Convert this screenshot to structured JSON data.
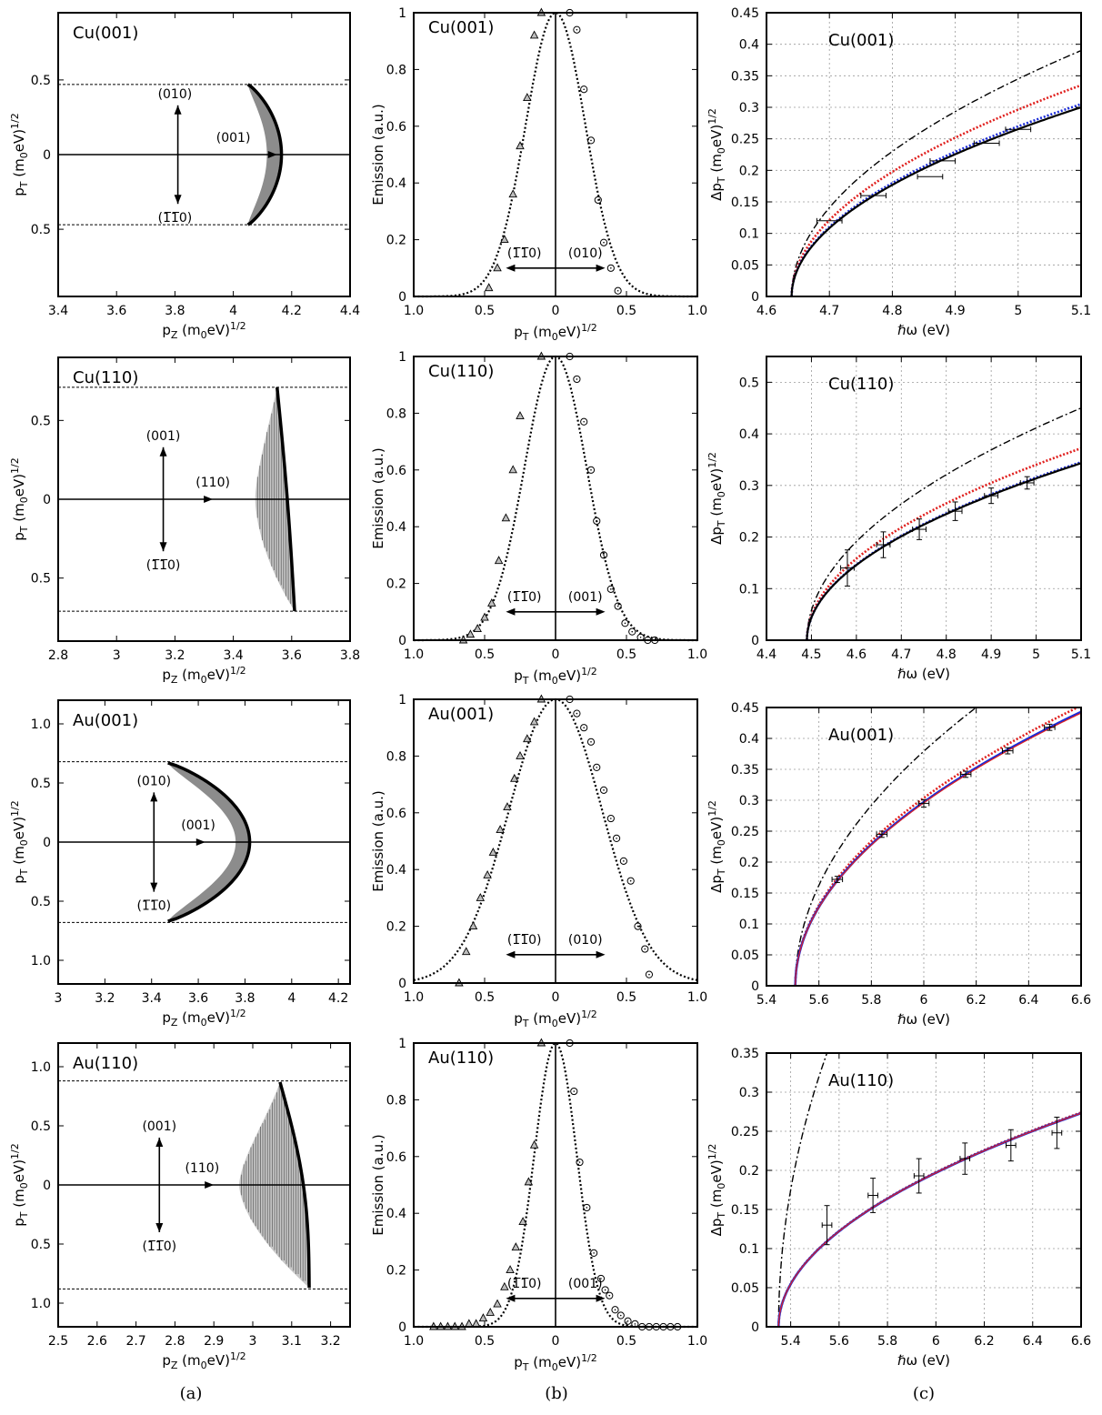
{
  "figure": {
    "captions": [
      "(a)",
      "(b)",
      "(c)"
    ]
  },
  "colors": {
    "red": "#e0201e",
    "blue": "#1a2bd8",
    "shade": "#8c8c8c"
  },
  "chart_data": [
    {
      "id": "a1",
      "type": "area",
      "title": "Cu(001)",
      "xlabel": "p_Z (m_0eV)^{1/2}",
      "ylabel": "p_T (m_0eV)^{1/2}",
      "xlim": [
        3.4,
        4.4
      ],
      "ylim": [
        -0.95,
        0.95
      ],
      "xticks": [
        3.4,
        3.6,
        3.8,
        4.0,
        4.2,
        4.4
      ],
      "xticklabels": [
        "3.4",
        "3.6",
        "3.8",
        "4",
        "4.2",
        "4.4"
      ],
      "yticks": [
        0.5,
        0,
        -0.5
      ],
      "yticklabels": [
        "0.5",
        "0",
        "0.5"
      ],
      "hlines": [
        0.47,
        -0.47
      ],
      "shape": "convex",
      "boundary": {
        "xmin": 4.05,
        "xmax": 4.165,
        "ymax": 0.47
      },
      "fill": "solid",
      "fill_inner_offset": 0.05,
      "arrows": {
        "cx": 3.81,
        "half": 0.33,
        "hx1": 4.15,
        "hlabel": "(001)",
        "up": "(010)",
        "down": "(1̅1̅0)"
      },
      "arrow_label_pos": {
        "up_x": 3.8,
        "down_x": 3.8,
        "h_x": 4.0
      }
    },
    {
      "id": "b1",
      "type": "scatter",
      "title": "Cu(001)",
      "xlabel": "p_T (m_0eV)^{1/2}",
      "ylabel": "Emission (a.u.)",
      "xlim": [
        -1,
        1
      ],
      "ylim": [
        0,
        1
      ],
      "xticks": [
        -1,
        -0.5,
        0,
        0.5,
        1
      ],
      "xticklabels": [
        "1.0",
        "0.5",
        "0",
        "0.5",
        "1.0"
      ],
      "yticks": [
        0,
        0.2,
        0.4,
        0.6,
        0.8,
        1
      ],
      "yticklabels": [
        "0",
        "0.2",
        "0.4",
        "0.6",
        "0.8",
        "1"
      ],
      "gauss_sigma": 0.21,
      "triangles": [
        [
          -0.47,
          0.03
        ],
        [
          -0.41,
          0.1
        ],
        [
          -0.36,
          0.2
        ],
        [
          -0.3,
          0.36
        ],
        [
          -0.25,
          0.53
        ],
        [
          -0.2,
          0.7
        ],
        [
          -0.15,
          0.92
        ],
        [
          -0.1,
          1.0
        ]
      ],
      "circles": [
        [
          0.1,
          1.0
        ],
        [
          0.15,
          0.94
        ],
        [
          0.2,
          0.73
        ],
        [
          0.25,
          0.55
        ],
        [
          0.3,
          0.34
        ],
        [
          0.34,
          0.19
        ],
        [
          0.39,
          0.1
        ],
        [
          0.44,
          0.02
        ]
      ],
      "arrow_labels": [
        "(1̅1̅0)",
        "(010)"
      ]
    },
    {
      "id": "c1",
      "type": "line",
      "title": "Cu(001)",
      "xlabel": "ℏω (eV)",
      "ylabel": "Δp_T (m_0eV)^{1/2}",
      "xlim": [
        4.6,
        5.1
      ],
      "ylim": [
        0,
        0.45
      ],
      "xticks": [
        4.6,
        4.7,
        4.8,
        4.9,
        5.0,
        5.1
      ],
      "xticklabels": [
        "4.6",
        "4.7",
        "4.8",
        "4.9",
        "5",
        "5.1"
      ],
      "yticks": [
        0,
        0.05,
        0.1,
        0.15,
        0.2,
        0.25,
        0.3,
        0.35,
        0.4,
        0.45
      ],
      "yticklabels": [
        "0",
        "0.05",
        "0.1",
        "0.15",
        "0.2",
        "0.25",
        "0.3",
        "0.35",
        "0.4",
        "0.45"
      ],
      "threshold": 4.64,
      "series": [
        {
          "style": "dashdot-black",
          "y_at_xmax": 0.39
        },
        {
          "style": "dotted-red",
          "y_at_xmax": 0.335
        },
        {
          "style": "dotted-blue",
          "y_at_xmax": 0.305
        },
        {
          "style": "solid-black",
          "y_at_xmax": 0.3
        }
      ],
      "points": [
        [
          4.7,
          0.12
        ],
        [
          4.77,
          0.16
        ],
        [
          4.86,
          0.19
        ],
        [
          4.88,
          0.215
        ],
        [
          4.95,
          0.243
        ],
        [
          5.0,
          0.265
        ]
      ],
      "xerr": 0.02,
      "yerr": 0.0
    },
    {
      "id": "a2",
      "type": "area",
      "title": "Cu(110)",
      "xlabel": "p_Z (m_0eV)^{1/2}",
      "ylabel": "p_T (m_0eV)^{1/2}",
      "xlim": [
        2.8,
        3.8
      ],
      "ylim": [
        -0.9,
        0.9
      ],
      "xticks": [
        2.8,
        3.0,
        3.2,
        3.4,
        3.6,
        3.8
      ],
      "xticklabels": [
        "2.8",
        "3",
        "3.2",
        "3.4",
        "3.6",
        "3.8"
      ],
      "yticks": [
        0.5,
        0,
        -0.5
      ],
      "yticklabels": [
        "0.5",
        "0",
        "0.5"
      ],
      "hlines": [
        0.71,
        -0.71
      ],
      "shape": "oblique",
      "boundary": {
        "top_x": 3.55,
        "bottom_x": 3.61,
        "mid_x": 3.585,
        "inner_x": 3.475,
        "ymax": 0.71
      },
      "fill": "hatched",
      "arrows": {
        "cx": 3.16,
        "half": 0.33,
        "hx1": 3.33,
        "hlabel": "(110)",
        "up": "(001)",
        "down": "(1̅1̅0)"
      },
      "arrow_label_pos": {
        "up_x": 3.16,
        "down_x": 3.16,
        "h_x": 3.33
      }
    },
    {
      "id": "b2",
      "type": "scatter",
      "title": "Cu(110)",
      "xlabel": "p_T (m_0eV)^{1/2}",
      "ylabel": "Emission (a.u.)",
      "xlim": [
        -1,
        1
      ],
      "ylim": [
        0,
        1
      ],
      "xticks": [
        -1,
        -0.5,
        0,
        0.5,
        1
      ],
      "xticklabels": [
        "1.0",
        "0.5",
        "0",
        "0.5",
        "1.0"
      ],
      "yticks": [
        0,
        0.2,
        0.4,
        0.6,
        0.8,
        1
      ],
      "yticklabels": [
        "0",
        "0.2",
        "0.4",
        "0.6",
        "0.8",
        "1"
      ],
      "gauss_sigma": 0.22,
      "triangles": [
        [
          -0.65,
          0.0
        ],
        [
          -0.6,
          0.02
        ],
        [
          -0.55,
          0.04
        ],
        [
          -0.5,
          0.08
        ],
        [
          -0.45,
          0.13
        ],
        [
          -0.4,
          0.28
        ],
        [
          -0.35,
          0.43
        ],
        [
          -0.3,
          0.6
        ],
        [
          -0.25,
          0.79
        ],
        [
          -0.1,
          1.0
        ]
      ],
      "circles": [
        [
          0.1,
          1.0
        ],
        [
          0.15,
          0.92
        ],
        [
          0.2,
          0.77
        ],
        [
          0.25,
          0.6
        ],
        [
          0.29,
          0.42
        ],
        [
          0.34,
          0.3
        ],
        [
          0.39,
          0.18
        ],
        [
          0.44,
          0.12
        ],
        [
          0.49,
          0.06
        ],
        [
          0.54,
          0.03
        ],
        [
          0.6,
          0.01
        ],
        [
          0.65,
          0.0
        ],
        [
          0.7,
          0.0
        ]
      ],
      "arrow_labels": [
        "(1̅1̅0)",
        "(001)"
      ]
    },
    {
      "id": "c2",
      "type": "line",
      "title": "Cu(110)",
      "xlabel": "ℏω (eV)",
      "ylabel": "Δp_T (m_0eV)^{1/2}",
      "xlim": [
        4.4,
        5.1
      ],
      "ylim": [
        0,
        0.55
      ],
      "xticks": [
        4.4,
        4.5,
        4.6,
        4.7,
        4.8,
        4.9,
        5.0,
        5.1
      ],
      "xticklabels": [
        "4.4",
        "4.5",
        "4.6",
        "4.7",
        "4.8",
        "4.9",
        "5",
        "5.1"
      ],
      "yticks": [
        0,
        0.1,
        0.2,
        0.3,
        0.4,
        0.5
      ],
      "yticklabels": [
        "0",
        "0.1",
        "0.2",
        "0.3",
        "0.4",
        "0.5"
      ],
      "threshold": 4.49,
      "series": [
        {
          "style": "dashdot-black",
          "y_at_xmax": 0.45
        },
        {
          "style": "dotted-red",
          "y_at_xmax": 0.372
        },
        {
          "style": "dotted-blue",
          "y_at_xmax": 0.345
        },
        {
          "style": "solid-black",
          "y_at_xmax": 0.343
        }
      ],
      "points": [
        [
          4.58,
          0.14
        ],
        [
          4.66,
          0.185
        ],
        [
          4.74,
          0.215
        ],
        [
          4.82,
          0.25
        ],
        [
          4.9,
          0.28
        ],
        [
          4.98,
          0.305
        ]
      ],
      "xerr": 0.015,
      "yerrs": [
        0.035,
        0.025,
        0.02,
        0.018,
        0.015,
        0.012
      ]
    },
    {
      "id": "a3",
      "type": "area",
      "title": "Au(001)",
      "xlabel": "p_Z (m_0eV)^{1/2}",
      "ylabel": "p_T (m_0eV)^{1/2}",
      "xlim": [
        3.0,
        4.25
      ],
      "ylim": [
        -1.2,
        1.2
      ],
      "xticks": [
        3.0,
        3.2,
        3.4,
        3.6,
        3.8,
        4.0,
        4.2
      ],
      "xticklabels": [
        "3",
        "3.2",
        "3.4",
        "3.6",
        "3.8",
        "4",
        "4.2"
      ],
      "yticks": [
        1.0,
        0.5,
        0,
        -0.5,
        -1.0
      ],
      "yticklabels": [
        "1.0",
        "0.5",
        "0",
        "0.5",
        "1.0"
      ],
      "hlines": [
        0.68,
        -0.68
      ],
      "shape": "convex",
      "boundary": {
        "xmin": 3.47,
        "xmax": 3.82,
        "ymax": 0.67
      },
      "fill": "solid",
      "fill_inner_offset": 0.06,
      "arrows": {
        "cx": 3.41,
        "half": 0.42,
        "hx1": 3.63,
        "hlabel": "(001)",
        "up": "(010)",
        "down": "(1̅1̅0)"
      },
      "arrow_label_pos": {
        "up_x": 3.41,
        "down_x": 3.41,
        "h_x": 3.6
      }
    },
    {
      "id": "b3",
      "type": "scatter",
      "title": "Au(001)",
      "xlabel": "p_T (m_0eV)^{1/2}",
      "ylabel": "Emission (a.u.)",
      "xlim": [
        -1,
        1
      ],
      "ylim": [
        0,
        1
      ],
      "xticks": [
        -1,
        -0.5,
        0,
        0.5,
        1
      ],
      "xticklabels": [
        "1.0",
        "0.5",
        "0",
        "0.5",
        "1.0"
      ],
      "yticks": [
        0,
        0.2,
        0.4,
        0.6,
        0.8,
        1
      ],
      "yticklabels": [
        "0",
        "0.2",
        "0.4",
        "0.6",
        "0.8",
        "1"
      ],
      "gauss_sigma": 0.33,
      "triangles": [
        [
          -0.68,
          0.0
        ],
        [
          -0.63,
          0.11
        ],
        [
          -0.58,
          0.2
        ],
        [
          -0.53,
          0.3
        ],
        [
          -0.48,
          0.38
        ],
        [
          -0.44,
          0.46
        ],
        [
          -0.39,
          0.54
        ],
        [
          -0.34,
          0.62
        ],
        [
          -0.29,
          0.72
        ],
        [
          -0.25,
          0.8
        ],
        [
          -0.2,
          0.86
        ],
        [
          -0.15,
          0.92
        ],
        [
          -0.1,
          1.0
        ]
      ],
      "circles": [
        [
          0.1,
          1.0
        ],
        [
          0.15,
          0.95
        ],
        [
          0.2,
          0.9
        ],
        [
          0.25,
          0.85
        ],
        [
          0.29,
          0.76
        ],
        [
          0.34,
          0.68
        ],
        [
          0.39,
          0.58
        ],
        [
          0.43,
          0.51
        ],
        [
          0.48,
          0.43
        ],
        [
          0.53,
          0.36
        ],
        [
          0.58,
          0.2
        ],
        [
          0.63,
          0.12
        ],
        [
          0.66,
          0.03
        ]
      ],
      "arrow_labels": [
        "(1̅1̅0)",
        "(010)"
      ]
    },
    {
      "id": "c3",
      "type": "line",
      "title": "Au(001)",
      "xlabel": "ℏω (eV)",
      "ylabel": "Δp_T (m_0eV)^{1/2}",
      "xlim": [
        5.4,
        6.6
      ],
      "ylim": [
        0,
        0.45
      ],
      "xticks": [
        5.4,
        5.6,
        5.8,
        6.0,
        6.2,
        6.4,
        6.6
      ],
      "xticklabels": [
        "5.4",
        "5.6",
        "5.8",
        "6",
        "6.2",
        "6.4",
        "6.6"
      ],
      "yticks": [
        0,
        0.05,
        0.1,
        0.15,
        0.2,
        0.25,
        0.3,
        0.35,
        0.4,
        0.45
      ],
      "yticklabels": [
        "0",
        "0.05",
        "0.1",
        "0.15",
        "0.2",
        "0.25",
        "0.3",
        "0.35",
        "0.4",
        "0.45"
      ],
      "threshold": 5.51,
      "series": [
        {
          "style": "dashdot-black",
          "y_at_x": [
            6.2,
            0.45
          ]
        },
        {
          "style": "dotted-red",
          "y_at_xmax": 0.453
        },
        {
          "style": "solid-blue",
          "y_at_xmax": 0.443
        },
        {
          "style": "solid-red-thin",
          "y_at_xmax": 0.441
        }
      ],
      "points": [
        [
          5.67,
          0.172
        ],
        [
          5.84,
          0.245
        ],
        [
          6.0,
          0.295
        ],
        [
          6.16,
          0.342
        ],
        [
          6.32,
          0.38
        ],
        [
          6.48,
          0.418
        ]
      ],
      "xerr": 0.02,
      "yerrs": [
        0.005,
        0.005,
        0.006,
        0.005,
        0.005,
        0.005
      ]
    },
    {
      "id": "a4",
      "type": "area",
      "title": "Au(110)",
      "xlabel": "p_Z (m_0eV)^{1/2}",
      "ylabel": "p_T (m_0eV)^{1/2}",
      "xlim": [
        2.5,
        3.25
      ],
      "ylim": [
        -1.2,
        1.2
      ],
      "xticks": [
        2.5,
        2.6,
        2.7,
        2.8,
        2.9,
        3.0,
        3.1,
        3.2
      ],
      "xticklabels": [
        "2.5",
        "2.6",
        "2.7",
        "2.8",
        "2.9",
        "3",
        "3.1",
        "3.2"
      ],
      "yticks": [
        1.0,
        0.5,
        0,
        -0.5,
        -1.0
      ],
      "yticklabels": [
        "1.0",
        "0.5",
        "0",
        "0.5",
        "1.0"
      ],
      "hlines": [
        0.88,
        -0.88
      ],
      "shape": "oblique",
      "boundary": {
        "top_x": 3.07,
        "bottom_x": 3.145,
        "mid_x": 3.13,
        "inner_x": 2.965,
        "ymax": 0.87
      },
      "fill": "hatched",
      "arrows": {
        "cx": 2.76,
        "half": 0.4,
        "hx1": 2.9,
        "hlabel": "(110)",
        "up": "(001)",
        "down": "(1̅1̅0)"
      },
      "arrow_label_pos": {
        "up_x": 2.76,
        "down_x": 2.76,
        "h_x": 2.87
      }
    },
    {
      "id": "b4",
      "type": "scatter",
      "title": "Au(110)",
      "xlabel": "p_T (m_0eV)^{1/2}",
      "ylabel": "Emission (a.u.)",
      "xlim": [
        -1,
        1
      ],
      "ylim": [
        0,
        1
      ],
      "xticks": [
        -1,
        -0.5,
        0,
        0.5,
        1
      ],
      "xticklabels": [
        "1.0",
        "0.5",
        "0",
        "0.5",
        "1.0"
      ],
      "yticks": [
        0,
        0.2,
        0.4,
        0.6,
        0.8,
        1
      ],
      "yticklabels": [
        "0",
        "0.2",
        "0.4",
        "0.6",
        "0.8",
        "1"
      ],
      "gauss_sigma": 0.15,
      "triangles": [
        [
          -0.86,
          0.0
        ],
        [
          -0.81,
          0.0
        ],
        [
          -0.76,
          0.0
        ],
        [
          -0.71,
          0.0
        ],
        [
          -0.66,
          0.0
        ],
        [
          -0.61,
          0.01
        ],
        [
          -0.56,
          0.01
        ],
        [
          -0.51,
          0.03
        ],
        [
          -0.46,
          0.05
        ],
        [
          -0.41,
          0.08
        ],
        [
          -0.36,
          0.14
        ],
        [
          -0.32,
          0.2
        ],
        [
          -0.28,
          0.28
        ],
        [
          -0.23,
          0.37
        ],
        [
          -0.19,
          0.51
        ],
        [
          -0.15,
          0.64
        ],
        [
          -0.1,
          1.0
        ]
      ],
      "circles": [
        [
          0.1,
          1.0
        ],
        [
          0.13,
          0.83
        ],
        [
          0.17,
          0.58
        ],
        [
          0.22,
          0.42
        ],
        [
          0.27,
          0.26
        ],
        [
          0.32,
          0.17
        ],
        [
          0.35,
          0.13
        ],
        [
          0.38,
          0.11
        ],
        [
          0.42,
          0.06
        ],
        [
          0.46,
          0.04
        ],
        [
          0.51,
          0.02
        ],
        [
          0.56,
          0.01
        ],
        [
          0.61,
          0.0
        ],
        [
          0.66,
          0.0
        ],
        [
          0.71,
          0.0
        ],
        [
          0.76,
          0.0
        ],
        [
          0.81,
          0.0
        ],
        [
          0.86,
          0.0
        ]
      ],
      "arrow_labels": [
        "(1̅1̅0)",
        "(001)"
      ]
    },
    {
      "id": "c4",
      "type": "line",
      "title": "Au(110)",
      "xlabel": "ℏω (eV)",
      "ylabel": "Δp_T (m_0eV)^{1/2}",
      "xlim": [
        5.3,
        6.6
      ],
      "ylim": [
        0,
        0.35
      ],
      "xticks": [
        5.4,
        5.6,
        5.8,
        6.0,
        6.2,
        6.4,
        6.6
      ],
      "xticklabels": [
        "5.4",
        "5.6",
        "5.8",
        "6",
        "6.2",
        "6.4",
        "6.6"
      ],
      "yticks": [
        0,
        0.05,
        0.1,
        0.15,
        0.2,
        0.25,
        0.3,
        0.35
      ],
      "yticklabels": [
        "0",
        "0.05",
        "0.1",
        "0.15",
        "0.2",
        "0.25",
        "0.3",
        "0.35"
      ],
      "threshold": 5.35,
      "series": [
        {
          "style": "dashdot-black",
          "y_at_x": [
            5.55,
            0.35
          ]
        },
        {
          "style": "dotted-red",
          "y_at_xmax": 0.274
        },
        {
          "style": "solid-blue",
          "y_at_xmax": 0.273
        },
        {
          "style": "solid-red-thin",
          "y_at_xmax": 0.273
        }
      ],
      "points": [
        [
          5.55,
          0.13
        ],
        [
          5.74,
          0.168
        ],
        [
          5.93,
          0.193
        ],
        [
          6.12,
          0.215
        ],
        [
          6.31,
          0.232
        ],
        [
          6.5,
          0.248
        ]
      ],
      "xerr": 0.02,
      "yerrs": [
        0.025,
        0.022,
        0.022,
        0.02,
        0.02,
        0.02
      ]
    }
  ]
}
